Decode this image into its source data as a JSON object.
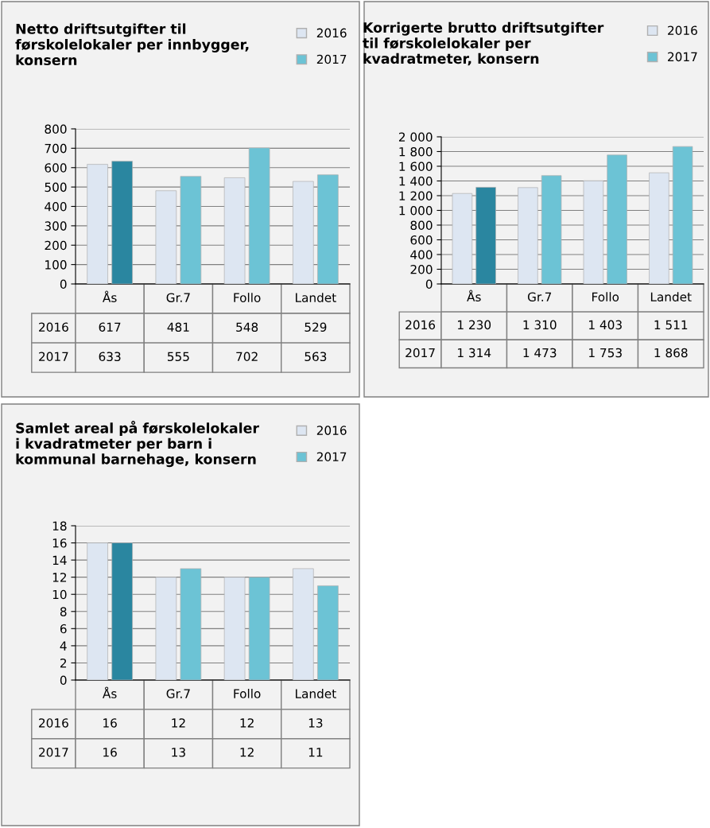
{
  "chart_data": [
    {
      "type": "bar",
      "title": "Netto driftsutgifter til\nførskolelokaler per innbygger,\nkonsern",
      "categories": [
        "Ås",
        "Gr.7",
        "Follo",
        "Landet"
      ],
      "series": [
        {
          "name": "2016",
          "color": "#dde6f2",
          "values": [
            617,
            481,
            548,
            529
          ]
        },
        {
          "name": "2017",
          "color": "#6cc3d5",
          "colors": [
            "#2a86a0",
            "#6cc3d5",
            "#6cc3d5",
            "#6cc3d5"
          ],
          "values": [
            633,
            555,
            702,
            563
          ]
        }
      ],
      "ylim": [
        0,
        800
      ],
      "yticks": [
        0,
        100,
        200,
        300,
        400,
        500,
        600,
        700,
        800
      ],
      "grid": "y",
      "legend": "top right",
      "data_labels": true
    },
    {
      "type": "bar",
      "title": "Korrigerte brutto driftsutgifter\ntil førskolelokaler per\nkvadratmeter, konsern",
      "categories": [
        "Ås",
        "Gr.7",
        "Follo",
        "Landet"
      ],
      "series": [
        {
          "name": "2016",
          "color": "#dde6f2",
          "values": [
            1230,
            1310,
            1403,
            1511
          ],
          "value_labels": [
            "1 230",
            "1 310",
            "1 403",
            "1 511"
          ]
        },
        {
          "name": "2017",
          "color": "#6cc3d5",
          "colors": [
            "#2a86a0",
            "#6cc3d5",
            "#6cc3d5",
            "#6cc3d5"
          ],
          "values": [
            1314,
            1473,
            1753,
            1868
          ],
          "value_labels": [
            "1 314",
            "1 473",
            "1 753",
            "1 868"
          ]
        }
      ],
      "ylim": [
        0,
        2000
      ],
      "yticks": [
        0,
        {
          "value": 200,
          "label": "200"
        },
        400,
        600,
        800,
        {
          "value": 1000,
          "label": "1 000"
        },
        {
          "value": 1200,
          "label": "1 200"
        },
        {
          "value": 1400,
          "label": "1 400"
        },
        {
          "value": 1600,
          "label": "1 600"
        },
        {
          "value": 1800,
          "label": "1 800"
        },
        {
          "value": 2000,
          "label": "2 000"
        }
      ],
      "grid": "y",
      "legend": "top right"
    },
    {
      "type": "bar",
      "title": "Samlet areal på førskolelokaler\ni kvadratmeter per barn i\nkommunal barnehage, konsern",
      "categories": [
        "Ås",
        "Gr.7",
        "Follo",
        "Landet"
      ],
      "series": [
        {
          "name": "2016",
          "color": "#dde6f2",
          "values": [
            16,
            12,
            12,
            13
          ]
        },
        {
          "name": "2017",
          "color": "#6cc3d5",
          "colors": [
            "#2a86a0",
            "#6cc3d5",
            "#6cc3d5",
            "#6cc3d5"
          ],
          "values": [
            16,
            13,
            12,
            11
          ]
        }
      ],
      "ylim": [
        0,
        18
      ],
      "yticks": [
        0,
        2,
        4,
        6,
        8,
        10,
        12,
        14,
        16,
        18
      ],
      "grid": "y",
      "legend": "top right",
      "data_labels": true
    }
  ]
}
